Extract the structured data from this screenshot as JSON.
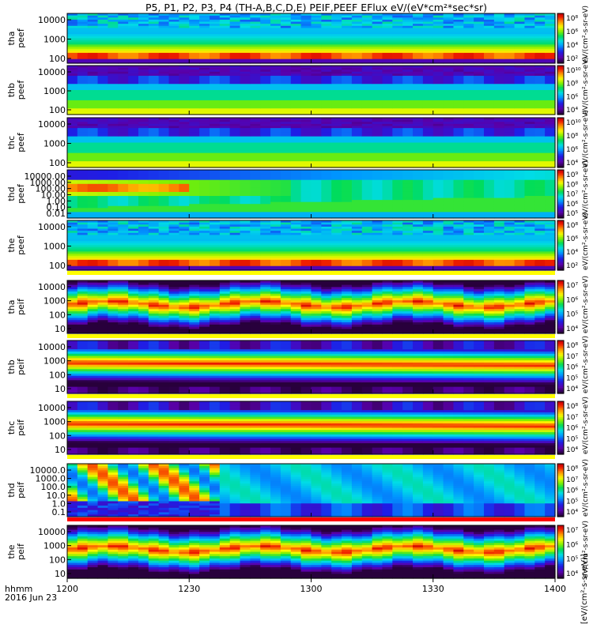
{
  "chart_data": {
    "type": "heatmap",
    "title": "P5, P1, P2, P3, P4 (TH-A,B,C,D,E) PEIF,PEEF EFlux eV/(eV*cm²*sec*sr)",
    "x_ticks": [
      "1200",
      "1230",
      "1300",
      "1330",
      "1400"
    ],
    "x_tick_values": [
      0,
      30,
      60,
      90,
      120
    ],
    "x_range": [
      0,
      120
    ],
    "footer_left": [
      "hhmm",
      "2016 Jun 23"
    ],
    "colorbar_label": "[eV/(cm²-s-sr-eV)]",
    "log_scale": true,
    "panels": [
      {
        "name": "tha-peef",
        "ylabel": [
          "tha",
          "peef"
        ],
        "yticks": [
          "100",
          "1000",
          "10000"
        ],
        "cbticks": [
          "10²",
          "10⁴",
          "10⁶",
          "10⁸"
        ],
        "colorbar_text": "eV/(cm²-s-sr-eV)",
        "pattern": "electron_red",
        "bottom_bar": false
      },
      {
        "name": "thb-peef",
        "ylabel": [
          "thb",
          "peef"
        ],
        "yticks": [
          "100",
          "1000",
          "10000"
        ],
        "cbticks": [
          "10⁴",
          "10⁶",
          "10⁸",
          "10¹⁰"
        ],
        "colorbar_text": "eV/(cm²-s-sr-eV)",
        "pattern": "electron_green",
        "bottom_bar": false
      },
      {
        "name": "thc-peef",
        "ylabel": [
          "thc",
          "peef"
        ],
        "yticks": [
          "100",
          "1000",
          "10000"
        ],
        "cbticks": [
          "10⁴",
          "10⁶",
          "10⁸",
          "10¹⁰"
        ],
        "colorbar_text": "eV/(cm²-s-sr-eV)",
        "pattern": "electron_green",
        "bottom_bar": false
      },
      {
        "name": "thd-peef",
        "ylabel": [
          "thd",
          "peef"
        ],
        "yticks": [
          "0.01",
          "0.10",
          "1.00",
          "10.00",
          "100.00",
          "1000.00",
          "10000.00"
        ],
        "cbticks": [
          "10⁵",
          "10⁶",
          "10⁷",
          "10⁸",
          "10⁹"
        ],
        "colorbar_text": "eV/(cm²-s-sr-eV)",
        "pattern": "thd_electron",
        "bottom_bar": false
      },
      {
        "name": "the-peef",
        "ylabel": [
          "the",
          "peef"
        ],
        "yticks": [
          "100",
          "1000",
          "10000"
        ],
        "cbticks": [
          "10²",
          "10⁴",
          "10⁶",
          "10⁸"
        ],
        "colorbar_text": "eV/(cm²-s-sr-eV)",
        "pattern": "electron_red",
        "bottom_bar": true,
        "bar_color": "#ffff00"
      },
      {
        "name": "tha-peif",
        "ylabel": [
          "tha",
          "peif"
        ],
        "yticks": [
          "10",
          "100",
          "1000",
          "10000"
        ],
        "cbticks": [
          "10⁴",
          "10⁵",
          "10⁶",
          "10⁷"
        ],
        "colorbar_text": "eV/(cm²-s-sr-eV)",
        "pattern": "ion",
        "bottom_bar": true,
        "bar_color": "#ffff00"
      },
      {
        "name": "thb-peif",
        "ylabel": [
          "thb",
          "peif"
        ],
        "yticks": [
          "10",
          "100",
          "1000",
          "10000"
        ],
        "cbticks": [
          "10⁴",
          "10⁵",
          "10⁶",
          "10⁷",
          "10⁸"
        ],
        "colorbar_text": "eV/(cm²-s-sr-eV)",
        "pattern": "ion_band",
        "bottom_bar": true,
        "bar_color": "#ffff00"
      },
      {
        "name": "thc-peif",
        "ylabel": [
          "thc",
          "peif"
        ],
        "yticks": [
          "10",
          "100",
          "1000",
          "10000"
        ],
        "cbticks": [
          "10⁴",
          "10⁵",
          "10⁶",
          "10⁷",
          "10⁸"
        ],
        "colorbar_text": "eV/(cm²-s-sr-eV)",
        "pattern": "ion_band",
        "bottom_bar": true,
        "bar_color": "#ffff00"
      },
      {
        "name": "thd-peif",
        "ylabel": [
          "thd",
          "peif"
        ],
        "yticks": [
          "0.1",
          "1.0",
          "10.0",
          "100.0",
          "1000.0",
          "10000.0"
        ],
        "cbticks": [
          "10⁴",
          "10⁵",
          "10⁶",
          "10⁷",
          "10⁸"
        ],
        "colorbar_text": "eV/(cm²-s-sr-eV)",
        "pattern": "thd_ion",
        "bottom_bar": true,
        "bar_color": "#ff0000"
      },
      {
        "name": "the-peif",
        "ylabel": [
          "the",
          "peif"
        ],
        "yticks": [
          "10",
          "100",
          "1000",
          "10000"
        ],
        "cbticks": [
          "10⁴",
          "10⁵",
          "10⁶",
          "10⁷"
        ],
        "colorbar_text": "eV/(cm²-s-sr-eV)",
        "pattern": "ion",
        "bottom_bar": false
      }
    ]
  }
}
